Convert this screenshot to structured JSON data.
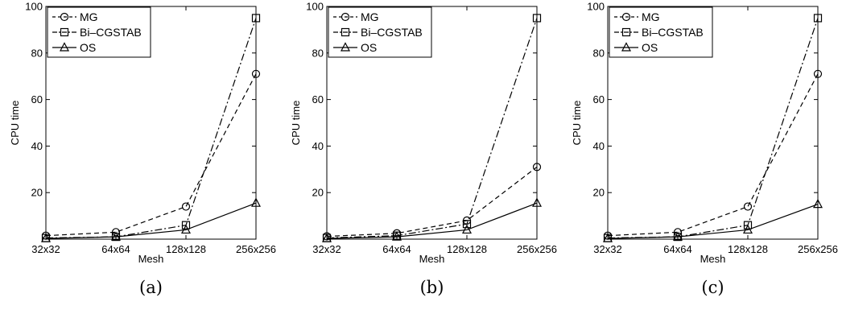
{
  "chart_data": [
    {
      "type": "line",
      "caption": "(a)",
      "categories": [
        "32x32",
        "64x64",
        "128x128",
        "256x256"
      ],
      "xlabel": "Mesh",
      "ylabel": "CPU time",
      "ylim": [
        0,
        100
      ],
      "yticks": [
        20,
        40,
        60,
        80,
        100
      ],
      "legend_position": "top-left",
      "series": [
        {
          "name": "MG",
          "marker": "circle",
          "dash": "dashed",
          "values": [
            1.5,
            3,
            14,
            71
          ]
        },
        {
          "name": "Bi–CGSTAB",
          "marker": "square",
          "dash": "dashdot",
          "values": [
            0.5,
            1,
            6,
            95
          ]
        },
        {
          "name": "OS",
          "marker": "triangle",
          "dash": "solid",
          "values": [
            0.3,
            1,
            4,
            15.5
          ]
        }
      ]
    },
    {
      "type": "line",
      "caption": "(b)",
      "categories": [
        "32x32",
        "64x64",
        "128x128",
        "256x256"
      ],
      "xlabel": "Mesh",
      "ylabel": "CPU time",
      "ylim": [
        0,
        100
      ],
      "yticks": [
        20,
        40,
        60,
        80,
        100
      ],
      "legend_position": "top-left",
      "series": [
        {
          "name": "MG",
          "marker": "circle",
          "dash": "dashed",
          "values": [
            1.2,
            2.5,
            8,
            31
          ]
        },
        {
          "name": "Bi–CGSTAB",
          "marker": "square",
          "dash": "dashdot",
          "values": [
            0.5,
            1.5,
            6.5,
            95
          ]
        },
        {
          "name": "OS",
          "marker": "triangle",
          "dash": "solid",
          "values": [
            0.3,
            1,
            4,
            15.5
          ]
        }
      ]
    },
    {
      "type": "line",
      "caption": "(c)",
      "categories": [
        "32x32",
        "64x64",
        "128x128",
        "256x256"
      ],
      "xlabel": "Mesh",
      "ylabel": "CPU time",
      "ylim": [
        0,
        100
      ],
      "yticks": [
        20,
        40,
        60,
        80,
        100
      ],
      "legend_position": "top-left",
      "series": [
        {
          "name": "MG",
          "marker": "circle",
          "dash": "dashed",
          "values": [
            1.5,
            3,
            14,
            71
          ]
        },
        {
          "name": "Bi–CGSTAB",
          "marker": "square",
          "dash": "dashdot",
          "values": [
            0.5,
            1,
            6,
            95
          ]
        },
        {
          "name": "OS",
          "marker": "triangle",
          "dash": "solid",
          "values": [
            0.3,
            1,
            4,
            15
          ]
        }
      ]
    }
  ]
}
